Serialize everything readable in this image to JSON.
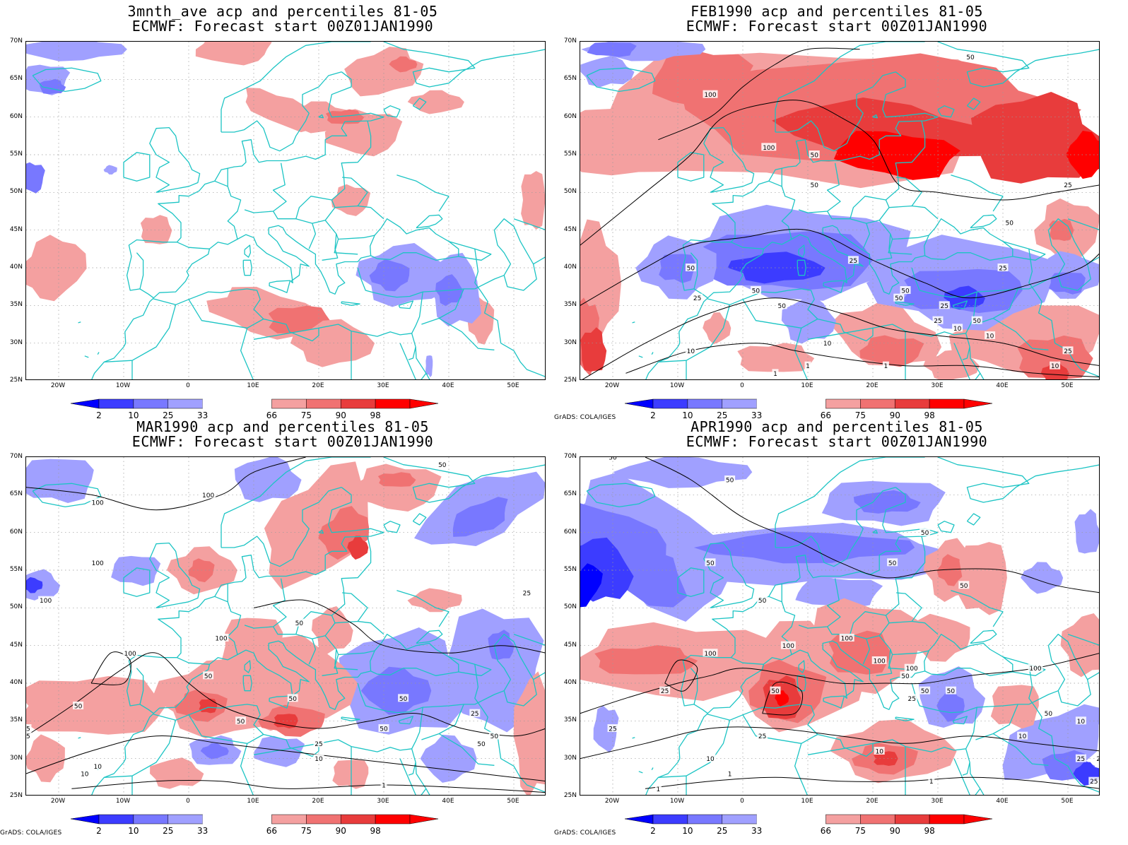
{
  "colors": {
    "blue_98": "#0000ff",
    "blue_10": "#3c3cff",
    "blue_25": "#7878ff",
    "blue_33": "#a0a0ff",
    "red_66": "#f4a0a0",
    "red_75": "#f07272",
    "red_90": "#e83c3c",
    "red_98": "#ff0000",
    "coast": "#1cc4c4",
    "contour": "#000000",
    "grid": "#999999"
  },
  "panels": [
    {
      "id": "p1",
      "title_line1": "3mnth_ave acp and percentiles 81-05",
      "title_line2": "ECMWF: Forecast start 00Z01JAN1990",
      "credit": "",
      "contour_labels": []
    },
    {
      "id": "p2",
      "title_line1": "FEB1990 acp and percentiles 81-05",
      "title_line2": "ECMWF: Forecast start 00Z01JAN1990",
      "credit": "GrADS: COLA/IGES",
      "contour_labels": [
        "50",
        "100",
        "100",
        "50",
        "50",
        "25",
        "50",
        "25",
        "50",
        "50",
        "25",
        "50",
        "50",
        "25",
        "25",
        "10",
        "50",
        "25",
        "10",
        "50",
        "10",
        "1",
        "1",
        "1",
        "10",
        "25",
        "10"
      ]
    },
    {
      "id": "p3",
      "title_line1": "MAR1990 acp and percentiles 81-05",
      "title_line2": "ECMWF: Forecast start 00Z01JAN1990",
      "credit": "GrADS: COLA/IGES",
      "contour_labels": [
        "50",
        "100",
        "100",
        "100",
        "100",
        "25",
        "100",
        "50",
        "100",
        "50",
        "50",
        "50",
        "50",
        "50",
        "50",
        "25",
        "25",
        "25",
        "10",
        "10",
        "10",
        "1",
        "50",
        "25",
        "50"
      ]
    },
    {
      "id": "p4",
      "title_line1": "APR1990 acp and percentiles 81-05",
      "title_line2": "ECMWF: Forecast start 00Z01JAN1990",
      "credit": "GrADS: COLA/IGES",
      "contour_labels": [
        "50",
        "50",
        "50",
        "50",
        "50",
        "50",
        "50",
        "100",
        "100",
        "100",
        "100",
        "100",
        "100",
        "50",
        "50",
        "50",
        "25",
        "50",
        "25",
        "25",
        "25",
        "10",
        "10",
        "10",
        "1",
        "1",
        "10",
        "50",
        "25",
        "25",
        "25",
        "1"
      ]
    }
  ],
  "lat_labels": [
    "70N",
    "65N",
    "60N",
    "55N",
    "50N",
    "45N",
    "40N",
    "35N",
    "30N",
    "25N"
  ],
  "lon_labels": [
    "20W",
    "10W",
    "0",
    "10E",
    "20E",
    "30E",
    "40E",
    "50E"
  ],
  "colorbar_labels": [
    "2",
    "10",
    "25",
    "33",
    "66",
    "75",
    "90",
    "98"
  ]
}
